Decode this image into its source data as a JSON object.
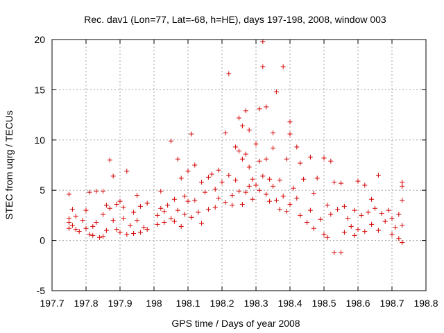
{
  "chart_data": {
    "type": "scatter",
    "title": "Rec. dav1 (Lon=77, Lat=-68, h=HE), days 197-198, 2008, window 003",
    "xlabel": "GPS time / Days of year 2008",
    "ylabel": "STEC from uqrg / TECUs",
    "xlim": [
      197.7,
      198.8
    ],
    "ylim": [
      -5,
      20
    ],
    "x_ticks": [
      197.7,
      197.8,
      197.9,
      198.0,
      198.1,
      198.2,
      198.3,
      198.4,
      198.5,
      198.6,
      198.7,
      198.8
    ],
    "x_tick_labels": [
      "197.7",
      "197.8",
      "197.9",
      "198",
      "198.1",
      "198.2",
      "198.3",
      "198.4",
      "198.5",
      "198.6",
      "198.7",
      "198.8"
    ],
    "y_ticks": [
      -5,
      0,
      5,
      10,
      15,
      20
    ],
    "y_tick_labels": [
      "-5",
      "0",
      "5",
      "10",
      "15",
      "20"
    ],
    "grid": true,
    "marker": "plus",
    "color": "#d40000",
    "points": [
      [
        197.75,
        4.6
      ],
      [
        197.75,
        2.2
      ],
      [
        197.75,
        1.8
      ],
      [
        197.75,
        1.2
      ],
      [
        197.76,
        1.5
      ],
      [
        197.76,
        3.1
      ],
      [
        197.77,
        2.4
      ],
      [
        197.77,
        1.1
      ],
      [
        197.78,
        0.9
      ],
      [
        197.79,
        2.0
      ],
      [
        197.8,
        1.2
      ],
      [
        197.8,
        3.0
      ],
      [
        197.81,
        0.6
      ],
      [
        197.81,
        4.8
      ],
      [
        197.82,
        1.4
      ],
      [
        197.82,
        0.5
      ],
      [
        197.83,
        4.9
      ],
      [
        197.83,
        1.8
      ],
      [
        197.84,
        0.3
      ],
      [
        197.85,
        4.9
      ],
      [
        197.85,
        2.6
      ],
      [
        197.85,
        0.4
      ],
      [
        197.86,
        3.5
      ],
      [
        197.86,
        1.0
      ],
      [
        197.87,
        8.0
      ],
      [
        197.87,
        3.2
      ],
      [
        197.88,
        2.0
      ],
      [
        197.88,
        6.4
      ],
      [
        197.89,
        3.6
      ],
      [
        197.89,
        1.1
      ],
      [
        197.9,
        3.9
      ],
      [
        197.9,
        0.8
      ],
      [
        197.91,
        2.2
      ],
      [
        197.91,
        3.3
      ],
      [
        197.92,
        6.9
      ],
      [
        197.92,
        0.6
      ],
      [
        197.93,
        1.5
      ],
      [
        197.94,
        2.8
      ],
      [
        197.94,
        0.7
      ],
      [
        197.95,
        4.5
      ],
      [
        197.95,
        2.0
      ],
      [
        197.96,
        0.8
      ],
      [
        197.96,
        3.4
      ],
      [
        197.97,
        1.3
      ],
      [
        197.98,
        3.7
      ],
      [
        197.98,
        1.1
      ],
      [
        198.01,
        2.5
      ],
      [
        198.01,
        1.6
      ],
      [
        198.02,
        3.2
      ],
      [
        198.02,
        4.9
      ],
      [
        198.03,
        1.8
      ],
      [
        198.03,
        2.9
      ],
      [
        198.04,
        3.5
      ],
      [
        198.05,
        9.9
      ],
      [
        198.05,
        2.2
      ],
      [
        198.06,
        4.1
      ],
      [
        198.06,
        1.9
      ],
      [
        198.07,
        8.1
      ],
      [
        198.07,
        3.0
      ],
      [
        198.08,
        6.2
      ],
      [
        198.08,
        1.4
      ],
      [
        198.09,
        4.4
      ],
      [
        198.09,
        2.6
      ],
      [
        198.1,
        6.9
      ],
      [
        198.1,
        3.9
      ],
      [
        198.11,
        10.6
      ],
      [
        198.11,
        2.3
      ],
      [
        198.12,
        7.5
      ],
      [
        198.12,
        4.0
      ],
      [
        198.13,
        2.8
      ],
      [
        198.14,
        5.8
      ],
      [
        198.14,
        1.7
      ],
      [
        198.15,
        4.8
      ],
      [
        198.16,
        6.3
      ],
      [
        198.16,
        3.1
      ],
      [
        198.17,
        6.6
      ],
      [
        198.18,
        5.1
      ],
      [
        198.18,
        3.3
      ],
      [
        198.19,
        7.0
      ],
      [
        198.19,
        4.2
      ],
      [
        198.2,
        5.8
      ],
      [
        198.21,
        10.7
      ],
      [
        198.21,
        3.8
      ],
      [
        198.22,
        6.5
      ],
      [
        198.22,
        16.6
      ],
      [
        198.23,
        4.5
      ],
      [
        198.23,
        3.5
      ],
      [
        198.24,
        9.3
      ],
      [
        198.24,
        6.0
      ],
      [
        198.25,
        12.2
      ],
      [
        198.25,
        8.9
      ],
      [
        198.25,
        4.9
      ],
      [
        198.26,
        11.4
      ],
      [
        198.26,
        8.1
      ],
      [
        198.26,
        3.6
      ],
      [
        198.27,
        12.9
      ],
      [
        198.27,
        8.6
      ],
      [
        198.27,
        4.8
      ],
      [
        198.28,
        11.0
      ],
      [
        198.28,
        7.3
      ],
      [
        198.28,
        5.4
      ],
      [
        198.29,
        6.1
      ],
      [
        198.29,
        4.1
      ],
      [
        198.3,
        9.6
      ],
      [
        198.3,
        5.5
      ],
      [
        198.31,
        13.1
      ],
      [
        198.31,
        7.9
      ],
      [
        198.31,
        5.0
      ],
      [
        198.32,
        19.8
      ],
      [
        198.32,
        17.3
      ],
      [
        198.32,
        6.4
      ],
      [
        198.33,
        13.3
      ],
      [
        198.33,
        8.1
      ],
      [
        198.33,
        4.6
      ],
      [
        198.34,
        6.1
      ],
      [
        198.34,
        3.9
      ],
      [
        198.35,
        10.7
      ],
      [
        198.35,
        9.2
      ],
      [
        198.35,
        5.4
      ],
      [
        198.36,
        14.8
      ],
      [
        198.36,
        4.0
      ],
      [
        198.37,
        6.0
      ],
      [
        198.37,
        3.1
      ],
      [
        198.38,
        17.3
      ],
      [
        198.38,
        4.4
      ],
      [
        198.39,
        8.1
      ],
      [
        198.39,
        2.9
      ],
      [
        198.4,
        11.8
      ],
      [
        198.4,
        10.6
      ],
      [
        198.4,
        3.6
      ],
      [
        198.41,
        5.2
      ],
      [
        198.42,
        9.3
      ],
      [
        198.42,
        4.2
      ],
      [
        198.43,
        7.7
      ],
      [
        198.43,
        2.5
      ],
      [
        198.44,
        6.1
      ],
      [
        198.45,
        1.8
      ],
      [
        198.46,
        8.3
      ],
      [
        198.46,
        3.0
      ],
      [
        198.47,
        4.7
      ],
      [
        198.47,
        1.2
      ],
      [
        198.48,
        6.2
      ],
      [
        198.49,
        2.1
      ],
      [
        198.5,
        8.2
      ],
      [
        198.5,
        0.6
      ],
      [
        198.51,
        3.5
      ],
      [
        198.51,
        0.3
      ],
      [
        198.52,
        7.9
      ],
      [
        198.52,
        2.6
      ],
      [
        198.53,
        5.8
      ],
      [
        198.53,
        -1.2
      ],
      [
        198.54,
        3.1
      ],
      [
        198.55,
        -1.2
      ],
      [
        198.55,
        5.7
      ],
      [
        198.56,
        3.4
      ],
      [
        198.56,
        0.8
      ],
      [
        198.57,
        2.2
      ],
      [
        198.58,
        1.4
      ],
      [
        198.59,
        3.0
      ],
      [
        198.59,
        0.5
      ],
      [
        198.6,
        5.9
      ],
      [
        198.6,
        1.1
      ],
      [
        198.61,
        2.5
      ],
      [
        198.62,
        5.5
      ],
      [
        198.62,
        0.9
      ],
      [
        198.63,
        2.8
      ],
      [
        198.64,
        4.1
      ],
      [
        198.64,
        1.6
      ],
      [
        198.65,
        3.2
      ],
      [
        198.66,
        6.5
      ],
      [
        198.66,
        1.0
      ],
      [
        198.67,
        2.7
      ],
      [
        198.68,
        1.9
      ],
      [
        198.69,
        3.0
      ],
      [
        198.7,
        0.6
      ],
      [
        198.7,
        2.2
      ],
      [
        198.71,
        1.3
      ],
      [
        198.72,
        2.6
      ],
      [
        198.72,
        0.2
      ],
      [
        198.73,
        5.8
      ],
      [
        198.73,
        5.4
      ],
      [
        198.73,
        4.0
      ],
      [
        198.73,
        1.5
      ],
      [
        198.73,
        -0.2
      ]
    ]
  }
}
